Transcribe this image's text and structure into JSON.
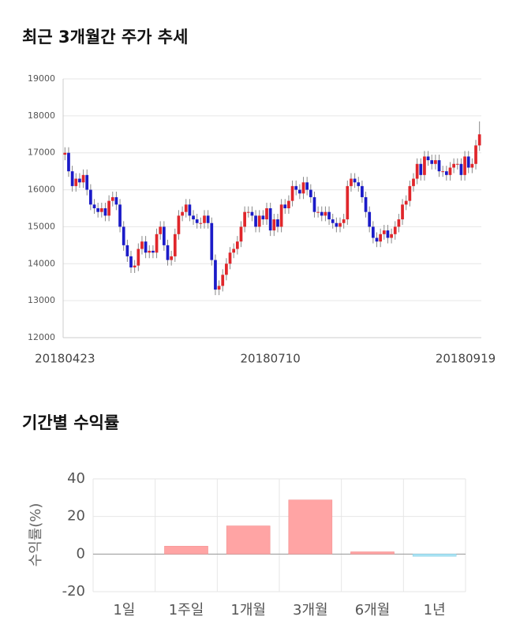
{
  "chart_data": [
    {
      "type": "candlestick",
      "title": "최근 3개월간 주가 추세",
      "categories": [
        "20180423",
        null,
        null,
        null,
        null,
        null,
        null,
        null,
        null,
        null,
        null,
        null,
        null,
        null,
        null,
        null,
        null,
        null,
        null,
        null,
        null,
        null,
        null,
        null,
        null,
        null,
        null,
        null,
        null,
        null,
        null,
        null,
        null,
        null,
        null,
        null,
        null,
        null,
        null,
        null,
        null,
        null,
        null,
        null,
        null,
        null,
        null,
        null,
        null,
        null,
        null,
        null,
        null,
        null,
        null,
        null,
        "20180710",
        null,
        null,
        null,
        null,
        null,
        null,
        null,
        null,
        null,
        null,
        null,
        null,
        null,
        null,
        null,
        null,
        null,
        null,
        null,
        null,
        null,
        null,
        null,
        null,
        null,
        null,
        null,
        null,
        null,
        null,
        null,
        null,
        null,
        null,
        null,
        null,
        null,
        null,
        null,
        null,
        null,
        null,
        null,
        null,
        null,
        null,
        null,
        null,
        null,
        null,
        null,
        null,
        null,
        "20180919",
        null,
        null,
        null
      ],
      "open": [
        16950,
        17000,
        16500,
        16100,
        16300,
        16200,
        16400,
        16000,
        15600,
        15500,
        15400,
        15500,
        15300,
        15700,
        15800,
        15600,
        15000,
        14500,
        14200,
        13900,
        13950,
        14400,
        14600,
        14300,
        14350,
        14300,
        14800,
        15000,
        14500,
        14100,
        14200,
        14800,
        15300,
        15400,
        15600,
        15300,
        15200,
        15100,
        15100,
        15300,
        15100,
        14100,
        13300,
        13400,
        13700,
        14000,
        14300,
        14400,
        14600,
        15000,
        15400,
        15400,
        15300,
        15000,
        15300,
        15200,
        15500,
        14900,
        15200,
        15000,
        15600,
        15500,
        15700,
        16100,
        16000,
        15900,
        16200,
        16000,
        15800,
        15400,
        15400,
        15300,
        15400,
        15200,
        15100,
        15000,
        15100,
        15200,
        16100,
        16300,
        16200,
        16100,
        15800,
        15400,
        15000,
        14700,
        14600,
        14800,
        14900,
        14700,
        14800,
        15000,
        15200,
        15600,
        15700,
        16100,
        16300,
        16700,
        16400,
        16900,
        16800,
        16700,
        16800,
        16500,
        16500,
        16400,
        16600,
        16700,
        16700,
        16400,
        16900,
        16600,
        16700,
        17200
      ],
      "high": [
        17150,
        17150,
        16650,
        16450,
        16450,
        16550,
        16550,
        16150,
        15750,
        15650,
        15650,
        15650,
        15850,
        15950,
        15950,
        15750,
        15150,
        14650,
        14350,
        14100,
        14550,
        14750,
        14750,
        14500,
        14500,
        14950,
        15150,
        15150,
        14650,
        14350,
        14950,
        15450,
        15550,
        15750,
        15750,
        15450,
        15350,
        15250,
        15450,
        15450,
        15250,
        14250,
        13550,
        13850,
        14150,
        14450,
        14550,
        14750,
        15150,
        15550,
        15550,
        15550,
        15450,
        15450,
        15450,
        15650,
        15650,
        15350,
        15350,
        15750,
        15750,
        15850,
        16250,
        16250,
        16150,
        16350,
        16350,
        16150,
        15950,
        15550,
        15550,
        15550,
        15550,
        15350,
        15250,
        15250,
        15350,
        16250,
        16450,
        16450,
        16350,
        16250,
        15950,
        15550,
        15150,
        14850,
        14950,
        15050,
        15050,
        14950,
        15150,
        15350,
        15750,
        15850,
        16250,
        16450,
        16850,
        16850,
        17050,
        17050,
        16950,
        16950,
        16950,
        16650,
        16650,
        16750,
        16850,
        16850,
        16850,
        17050,
        17050,
        16850,
        17350,
        17850
      ],
      "low": [
        16800,
        16350,
        15950,
        15950,
        16050,
        16050,
        15850,
        15450,
        15350,
        15250,
        15250,
        15150,
        15150,
        15550,
        15450,
        14850,
        14350,
        14050,
        13750,
        13750,
        13800,
        14250,
        14150,
        14150,
        14150,
        14150,
        14650,
        14350,
        13950,
        13950,
        14050,
        14650,
        15150,
        15250,
        15150,
        15050,
        14950,
        14950,
        14950,
        14950,
        13950,
        13150,
        13150,
        13250,
        13550,
        13850,
        14150,
        14250,
        14450,
        14850,
        15250,
        15150,
        14850,
        14850,
        15050,
        15050,
        14750,
        14750,
        14850,
        14850,
        15350,
        15350,
        15550,
        15850,
        15750,
        15750,
        15850,
        15650,
        15250,
        15250,
        15150,
        15150,
        15050,
        14950,
        14850,
        14850,
        14950,
        15050,
        15950,
        16050,
        15950,
        15650,
        15250,
        14850,
        14550,
        14450,
        14450,
        14650,
        14550,
        14550,
        14650,
        14850,
        15050,
        15450,
        15550,
        15950,
        16150,
        16250,
        16250,
        16650,
        16550,
        16550,
        16350,
        16350,
        16250,
        16250,
        16450,
        16550,
        16250,
        16250,
        16450,
        16450,
        16550,
        17050
      ],
      "close": [
        17000,
        16500,
        16100,
        16300,
        16200,
        16400,
        16000,
        15600,
        15500,
        15400,
        15500,
        15300,
        15700,
        15800,
        15600,
        15000,
        14500,
        14200,
        13900,
        13950,
        14400,
        14600,
        14300,
        14350,
        14300,
        14800,
        15000,
        14500,
        14100,
        14200,
        14800,
        15300,
        15400,
        15600,
        15300,
        15200,
        15100,
        15100,
        15300,
        15100,
        14100,
        13300,
        13400,
        13700,
        14000,
        14300,
        14400,
        14600,
        15000,
        15400,
        15400,
        15300,
        15000,
        15300,
        15200,
        15500,
        14900,
        15200,
        15000,
        15600,
        15500,
        15700,
        16100,
        16000,
        15900,
        16200,
        16000,
        15800,
        15400,
        15400,
        15300,
        15400,
        15200,
        15100,
        15000,
        15100,
        15200,
        16100,
        16300,
        16200,
        16100,
        15800,
        15400,
        15000,
        14700,
        14600,
        14800,
        14900,
        14700,
        14800,
        15000,
        15200,
        15600,
        15700,
        16100,
        16300,
        16700,
        16400,
        16900,
        16800,
        16700,
        16800,
        16500,
        16500,
        16400,
        16600,
        16700,
        16700,
        16400,
        16900,
        16600,
        16700,
        17200,
        17500
      ],
      "up_color": "#e0262b",
      "down_color": "#1b1bc8",
      "ylim": [
        12000,
        19000
      ],
      "yticks": [
        12000,
        13000,
        14000,
        15000,
        16000,
        17000,
        18000,
        19000
      ],
      "grid": true
    },
    {
      "type": "bar",
      "title": "기간별 수익률",
      "ylabel": "수익률(%)",
      "categories": [
        "1일",
        "1주일",
        "1개월",
        "3개월",
        "6개월",
        "1년"
      ],
      "values": [
        0,
        4.2,
        15,
        28.8,
        1.2,
        -1.2
      ],
      "colors": [
        "#ffa4a4",
        "#ffa4a4",
        "#ffa4a4",
        "#ffa4a4",
        "#ffa4a4",
        "#a9e3f3"
      ],
      "ylim": [
        -20,
        40
      ],
      "yticks": [
        -20,
        0,
        20,
        40
      ],
      "grid": true
    }
  ]
}
